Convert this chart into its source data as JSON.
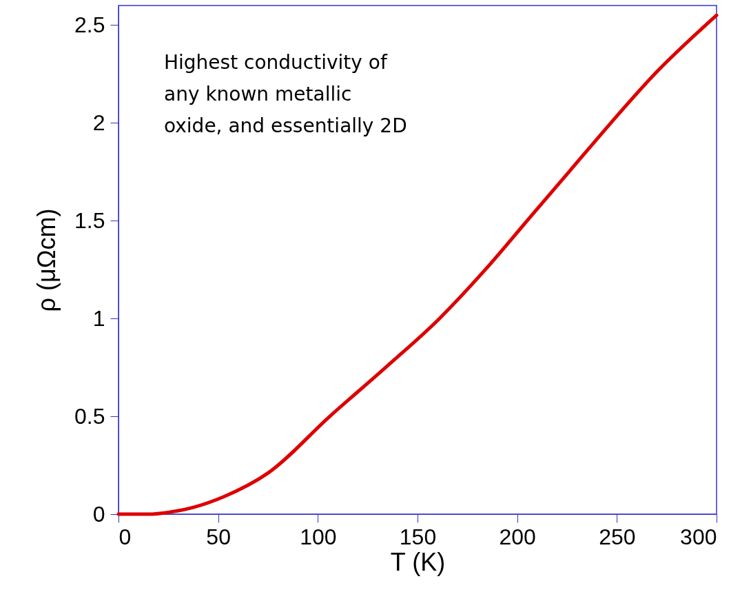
{
  "chart_data": {
    "type": "line",
    "xlabel": "T (K)",
    "ylabel": "ρ (μΩcm)",
    "annotations": [
      "Highest conductivity of\nany known metallic\noxide, and essentially 2D"
    ],
    "x": [
      0,
      3.5,
      15,
      25.6,
      37.6,
      53,
      75,
      106,
      134,
      161,
      184,
      205,
      226,
      247,
      269,
      300
    ],
    "series": [
      {
        "color": "#dd0000",
        "values": [
          0,
          0,
          0,
          0.01,
          0.035,
          0.09,
          0.21,
          0.5,
          0.75,
          1.0,
          1.25,
          1.5,
          1.75,
          2.0,
          2.25,
          2.55
        ]
      }
    ],
    "xlim": [
      0,
      300
    ],
    "xticks": [
      0,
      50,
      100,
      150,
      200,
      250,
      300
    ],
    "ylim": [
      0,
      2.6
    ],
    "yticks": [
      0,
      0.5,
      1,
      1.5,
      2,
      2.5
    ],
    "grid": false,
    "marker": "none",
    "line_style": "solid"
  }
}
